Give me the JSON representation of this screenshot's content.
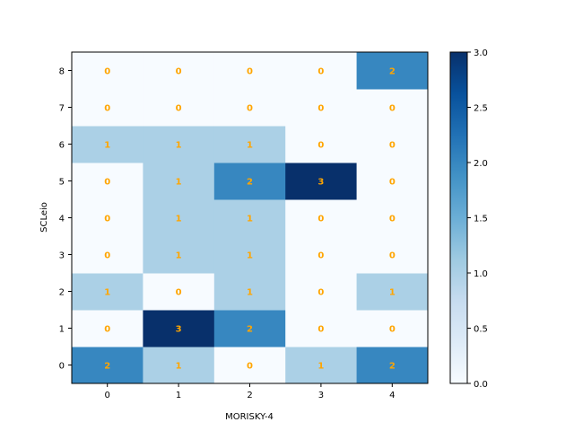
{
  "chart_data": {
    "type": "heatmap",
    "xlabel": "MORISKY-4",
    "ylabel": "SCLeio",
    "x_categories": [
      "0",
      "1",
      "2",
      "3",
      "4"
    ],
    "y_categories": [
      "0",
      "1",
      "2",
      "3",
      "4",
      "5",
      "6",
      "7",
      "8"
    ],
    "values": [
      [
        2,
        1,
        0,
        1,
        2
      ],
      [
        0,
        3,
        2,
        0,
        0
      ],
      [
        1,
        0,
        1,
        0,
        1
      ],
      [
        0,
        1,
        1,
        0,
        0
      ],
      [
        0,
        1,
        1,
        0,
        0
      ],
      [
        0,
        1,
        2,
        3,
        0
      ],
      [
        1,
        1,
        1,
        0,
        0
      ],
      [
        0,
        0,
        0,
        0,
        0
      ],
      [
        0,
        0,
        0,
        0,
        2
      ]
    ],
    "colorbar": {
      "min": 0.0,
      "max": 3.0,
      "tick_labels": [
        "0.0",
        "0.5",
        "1.0",
        "1.5",
        "2.0",
        "2.5",
        "3.0"
      ],
      "colormap": "Blues"
    },
    "annotation_color": "#ffa500"
  }
}
